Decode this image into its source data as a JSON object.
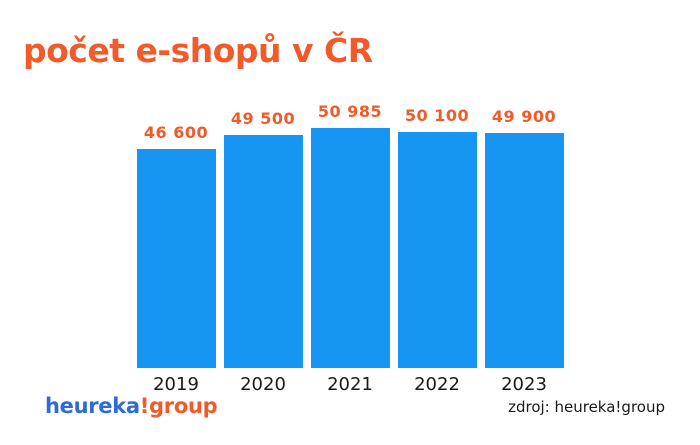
{
  "title": "počet e-shopů v ČR",
  "chart_data": {
    "type": "bar",
    "title": "počet e-shopů v ČR",
    "categories": [
      "2019",
      "2020",
      "2021",
      "2022",
      "2023"
    ],
    "values": [
      46600,
      49500,
      50985,
      50100,
      49900
    ],
    "value_labels": [
      "46 600",
      "49 500",
      "50 985",
      "50 100",
      "49 900"
    ],
    "xlabel": "",
    "ylabel": "",
    "ylim": [
      0,
      50985
    ],
    "grid": false,
    "legend": false,
    "bar_color": "#1795F3",
    "value_label_color": "#F15A29",
    "category_label_color": "#1a1a1a"
  },
  "footer": {
    "logo_blue_part": "heureka",
    "logo_orange_part": "!group",
    "source": "zdroj: heureka!group"
  },
  "colors": {
    "accent_orange": "#F15A29",
    "bar_blue": "#1795F3",
    "logo_blue": "#2E6BD6",
    "background": "#ffffff"
  }
}
